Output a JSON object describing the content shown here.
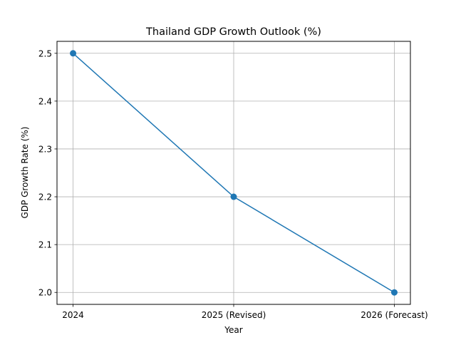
{
  "chart_data": {
    "type": "line",
    "title": "Thailand GDP Growth Outlook (%)",
    "xlabel": "Year",
    "ylabel": "GDP Growth Rate (%)",
    "categories": [
      "2024",
      "2025 (Revised)",
      "2026 (Forecast)"
    ],
    "values": [
      2.5,
      2.2,
      2.0
    ],
    "ylim": [
      1.975,
      2.525
    ],
    "yticks": [
      "2.0",
      "2.1",
      "2.2",
      "2.3",
      "2.4",
      "2.5"
    ],
    "grid": true,
    "marker": "circle",
    "color": "#1f77b4"
  }
}
